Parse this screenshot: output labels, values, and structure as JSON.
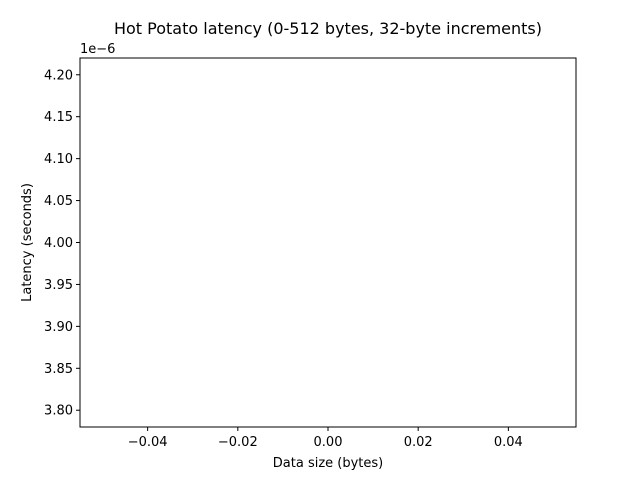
{
  "chart_data": {
    "type": "line",
    "title": "Hot Potato latency (0-512 bytes, 32-byte increments)",
    "xlabel": "Data size (bytes)",
    "ylabel": "Latency (seconds)",
    "y_offset_text": "1e−6",
    "xlim": [
      -0.055,
      0.055
    ],
    "ylim": [
      3.78e-06,
      4.22e-06
    ],
    "x_ticks": [
      -0.04,
      -0.02,
      0.0,
      0.02,
      0.04
    ],
    "x_tick_labels": [
      "−0.04",
      "−0.02",
      "0.00",
      "0.02",
      "0.04"
    ],
    "y_ticks": [
      3.8e-06,
      3.85e-06,
      3.9e-06,
      3.95e-06,
      4e-06,
      4.05e-06,
      4.1e-06,
      4.15e-06,
      4.2e-06
    ],
    "y_tick_labels": [
      "3.80",
      "3.85",
      "3.90",
      "3.95",
      "4.00",
      "4.05",
      "4.10",
      "4.15",
      "4.20"
    ],
    "grid": false,
    "series": [
      {
        "values": []
      }
    ],
    "colors": {
      "axes": "#000000",
      "background": "#ffffff"
    }
  }
}
